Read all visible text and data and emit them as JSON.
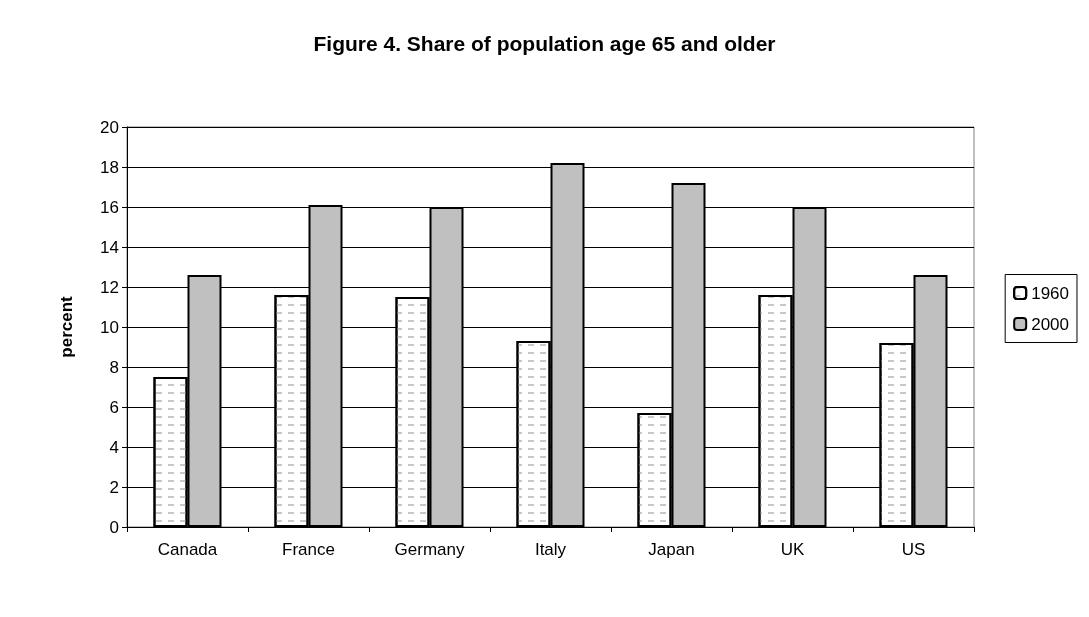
{
  "chart_data": {
    "type": "bar",
    "title": "Figure 4. Share of population age 65 and older",
    "ylabel": "percent",
    "categories": [
      "Canada",
      "France",
      "Germany",
      "Italy",
      "Japan",
      "UK",
      "US"
    ],
    "series": [
      {
        "name": "1960",
        "color": "#ffffff",
        "values": [
          7.5,
          11.6,
          11.5,
          9.3,
          5.7,
          11.6,
          9.2
        ]
      },
      {
        "name": "2000",
        "color": "#c0c0c0",
        "values": [
          12.6,
          16.1,
          16.0,
          18.2,
          17.2,
          16.0,
          12.6
        ]
      }
    ],
    "ylim": [
      0,
      20
    ],
    "yticks": [
      0,
      2,
      4,
      6,
      8,
      10,
      12,
      14,
      16,
      18,
      20
    ],
    "grid": "y",
    "legend": "right"
  }
}
